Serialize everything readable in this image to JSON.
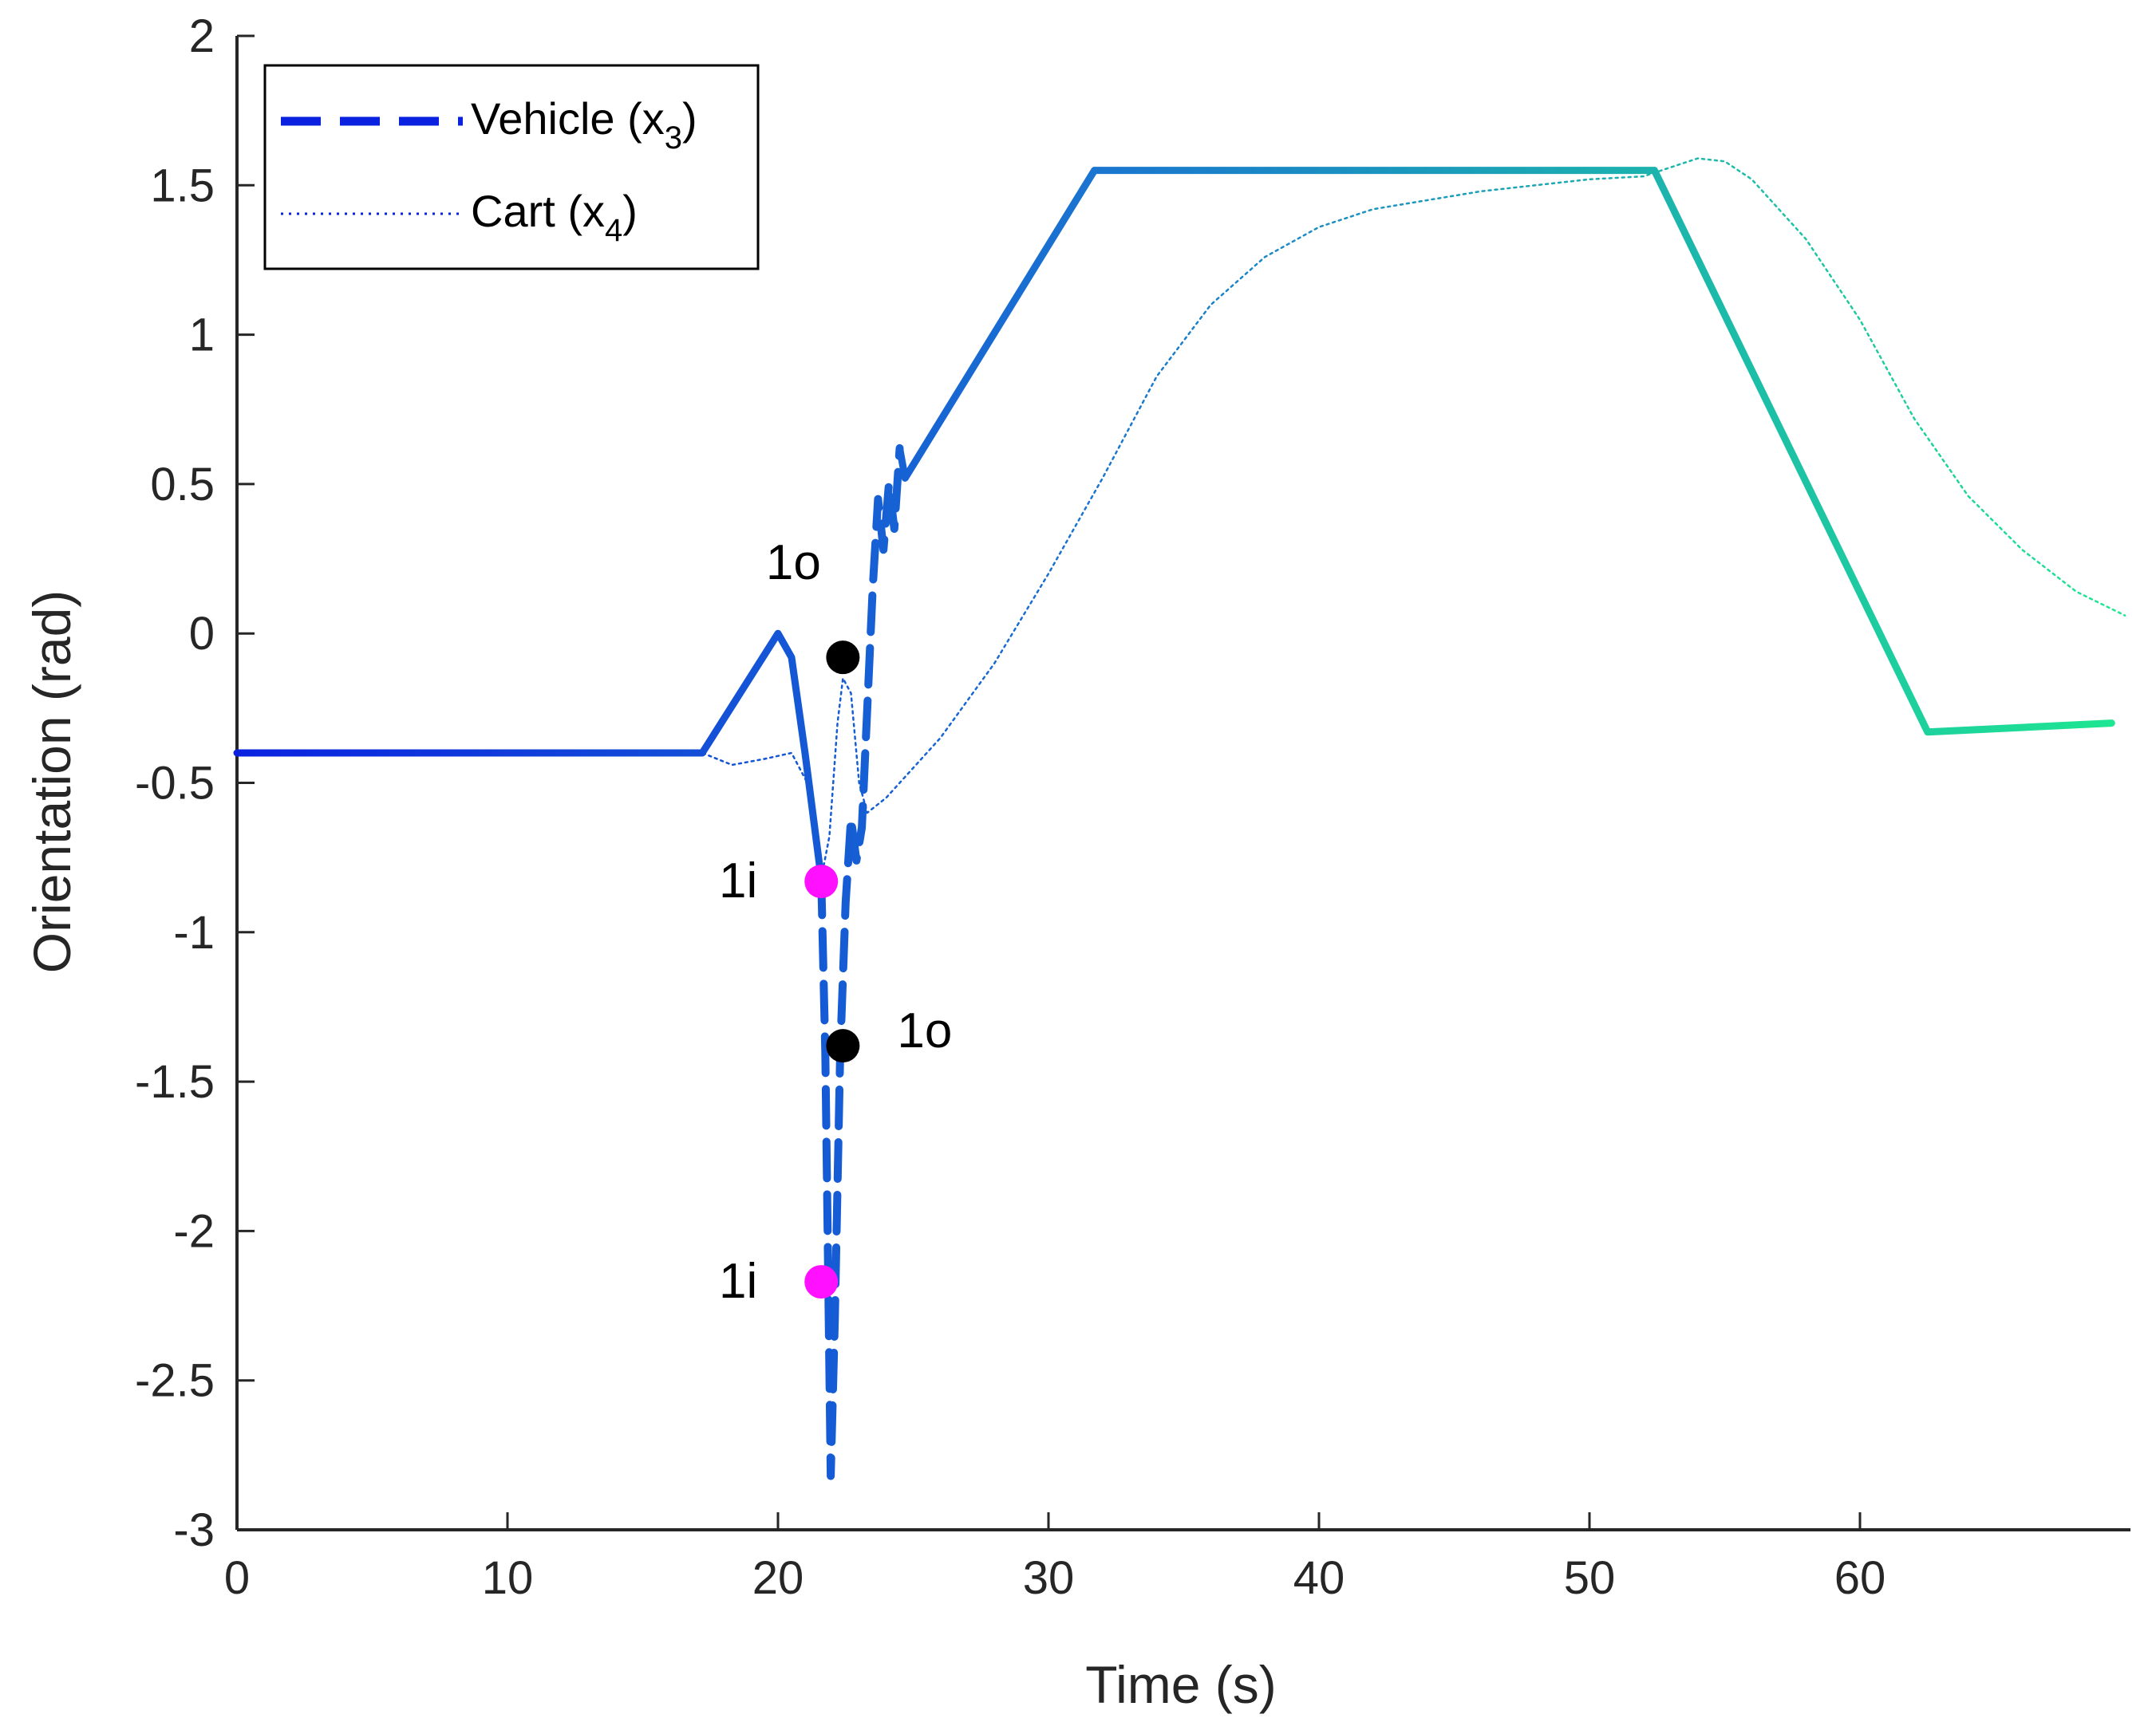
{
  "chart_data": {
    "type": "line",
    "title": "",
    "xlabel": "Time (s)",
    "ylabel": "Orientation (rad)",
    "xlim": [
      0,
      70
    ],
    "ylim": [
      -3,
      2
    ],
    "xticks": [
      0,
      10,
      20,
      30,
      40,
      50,
      60
    ],
    "xtick_labels": [
      "0",
      "10",
      "20",
      "30",
      "40",
      "50",
      "60"
    ],
    "yticks": [
      2,
      1.5,
      1,
      0.5,
      0,
      -0.5,
      -1,
      -1.5,
      -2,
      -2.5,
      -3
    ],
    "ytick_labels": [
      "2",
      "1.5",
      "1",
      "0.5",
      "0",
      "-0.5",
      "-1",
      "-1.5",
      "-2",
      "-2.5",
      "-3"
    ],
    "grid": false,
    "legend": {
      "location": "top-left",
      "entries": [
        {
          "name": "Vehicle (x",
          "sub": "3",
          "close": ")",
          "style": "dashed"
        },
        {
          "name": "Cart (x",
          "sub": "4",
          "close": ")",
          "style": "dotted"
        }
      ]
    },
    "colors": {
      "start": "#0a22e0",
      "mid": "#1a74d0",
      "end": "#1ee890",
      "marker_inner": "#ff10ff",
      "marker_outer": "#000000",
      "frame": "#000000"
    },
    "series": [
      {
        "name": "Vehicle (x3)",
        "style": "solid",
        "points": [
          [
            0,
            -0.4
          ],
          [
            17.2,
            -0.4
          ],
          [
            20,
            0
          ],
          [
            20.5,
            -0.08
          ],
          [
            21,
            -0.4
          ],
          [
            21.6,
            -0.82
          ]
        ]
      },
      {
        "name": "Vehicle (x3)",
        "style": "dashed",
        "points": [
          [
            21.6,
            -0.82
          ],
          [
            21.75,
            -1.4
          ],
          [
            21.85,
            -2.1
          ],
          [
            21.95,
            -2.82
          ],
          [
            22.1,
            -2.3
          ],
          [
            22.3,
            -1.4
          ],
          [
            22.5,
            -0.9
          ],
          [
            22.7,
            -0.62
          ],
          [
            22.9,
            -0.76
          ],
          [
            23.1,
            -0.65
          ],
          [
            23.3,
            -0.25
          ],
          [
            23.5,
            0.15
          ],
          [
            23.7,
            0.45
          ],
          [
            23.9,
            0.28
          ],
          [
            24.1,
            0.5
          ],
          [
            24.3,
            0.35
          ],
          [
            24.5,
            0.62
          ]
        ]
      },
      {
        "name": "Vehicle (x3)",
        "style": "solid",
        "points": [
          [
            24.5,
            0.62
          ],
          [
            24.7,
            0.52
          ],
          [
            31.7,
            1.55
          ],
          [
            52.4,
            1.55
          ],
          [
            62.5,
            -0.33
          ],
          [
            69.3,
            -0.3
          ]
        ]
      },
      {
        "name": "Cart (x4)",
        "style": "dotted",
        "points": [
          [
            0,
            -0.4
          ],
          [
            17.2,
            -0.4
          ],
          [
            18.3,
            -0.44
          ],
          [
            19.5,
            -0.42
          ],
          [
            20.5,
            -0.4
          ],
          [
            21.2,
            -0.52
          ],
          [
            21.6,
            -0.82
          ],
          [
            21.9,
            -0.68
          ],
          [
            22.2,
            -0.3
          ],
          [
            22.4,
            -0.15
          ],
          [
            22.7,
            -0.2
          ],
          [
            23.0,
            -0.5
          ],
          [
            23.3,
            -0.6
          ],
          [
            24,
            -0.55
          ],
          [
            26,
            -0.35
          ],
          [
            28,
            -0.1
          ],
          [
            30,
            0.2
          ],
          [
            32,
            0.52
          ],
          [
            34,
            0.86
          ],
          [
            36,
            1.1
          ],
          [
            38,
            1.26
          ],
          [
            40,
            1.36
          ],
          [
            42,
            1.42
          ],
          [
            44,
            1.45
          ],
          [
            46,
            1.48
          ],
          [
            48,
            1.5
          ],
          [
            50,
            1.52
          ],
          [
            52,
            1.53
          ],
          [
            53,
            1.56
          ],
          [
            54,
            1.59
          ],
          [
            55,
            1.58
          ],
          [
            56,
            1.52
          ],
          [
            58,
            1.32
          ],
          [
            60,
            1.05
          ],
          [
            62,
            0.72
          ],
          [
            64,
            0.46
          ],
          [
            66,
            0.28
          ],
          [
            68,
            0.14
          ],
          [
            69.8,
            0.06
          ]
        ]
      }
    ],
    "markers": [
      {
        "label": "1o",
        "x": 22.4,
        "y": -0.08,
        "kind": "outer",
        "label_side": "above-left"
      },
      {
        "label": "1i",
        "x": 21.6,
        "y": -0.83,
        "kind": "inner",
        "label_side": "left"
      },
      {
        "label": "1o",
        "x": 22.4,
        "y": -1.38,
        "kind": "outer",
        "label_side": "right"
      },
      {
        "label": "1i",
        "x": 21.6,
        "y": -2.17,
        "kind": "inner",
        "label_side": "left"
      }
    ]
  }
}
